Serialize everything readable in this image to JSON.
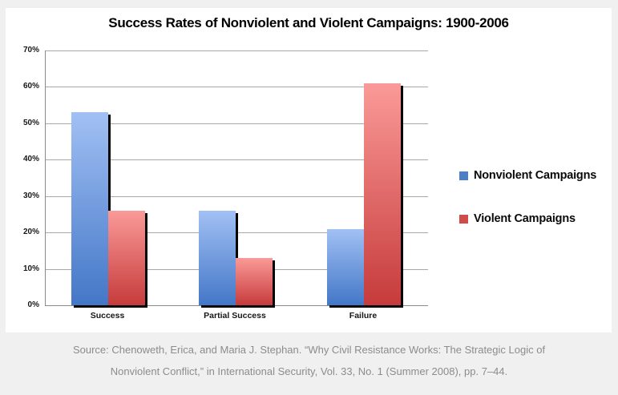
{
  "page": {
    "background_color": "#f0f0f0",
    "panel_color": "#ffffff"
  },
  "chart_data": {
    "type": "bar",
    "title": "Success Rates of Nonviolent and Violent Campaigns: 1900-2006",
    "categories": [
      "Success",
      "Partial Success",
      "Failure"
    ],
    "series": [
      {
        "name": "Nonviolent Campaigns",
        "values": [
          53,
          26,
          21
        ],
        "color_top": "#a2c0f4",
        "color_bottom": "#4377c7",
        "legend_color": "#4d7fc6"
      },
      {
        "name": "Violent Campaigns",
        "values": [
          26,
          13,
          61
        ],
        "color_top": "#fa9a98",
        "color_bottom": "#c63b3b",
        "legend_color": "#d14b4b"
      }
    ],
    "ylabel_ticks": [
      "0%",
      "10%",
      "20%",
      "30%",
      "40%",
      "50%",
      "60%",
      "70%"
    ],
    "ylim": [
      0,
      70
    ],
    "ytick_step": 10,
    "grid": true,
    "legend_position": "right",
    "gridline_color": "#a8a8a8",
    "axis_color": "#8a8a8a",
    "bar_shadow_color": "#050505"
  },
  "source": {
    "line1": "Source: Chenoweth, Erica, and Maria J. Stephan. “Why Civil Resistance Works: The Strategic Logic of",
    "line2": "Nonviolent Conflict,” in International Security, Vol. 33, No. 1 (Summer 2008), pp. 7–44."
  }
}
